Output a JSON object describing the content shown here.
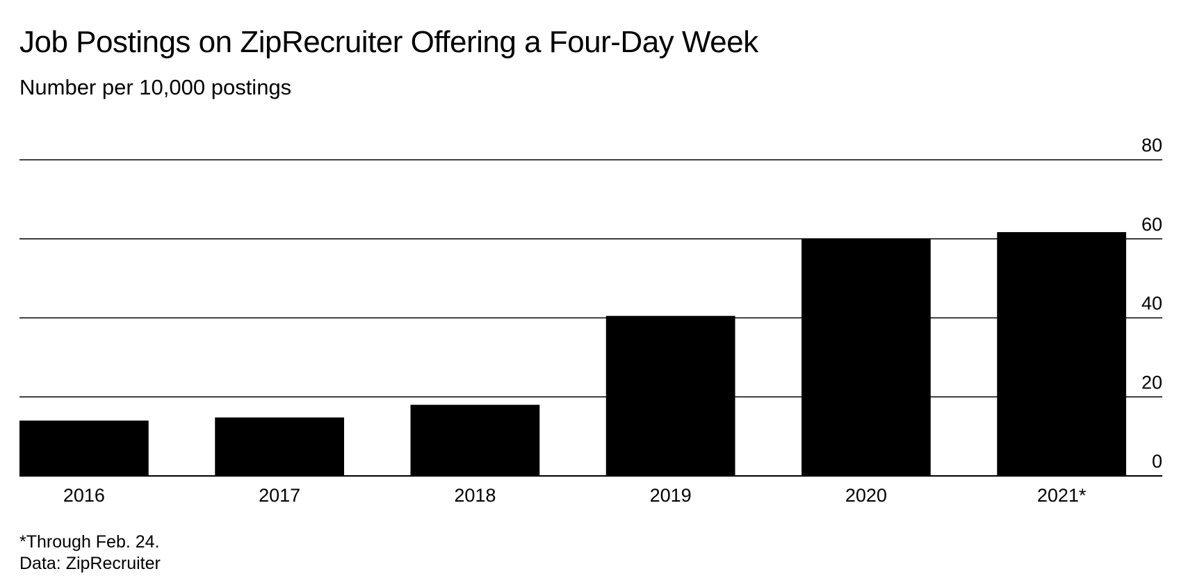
{
  "chart_data": {
    "type": "bar",
    "title": "Job Postings on ZipRecruiter Offering a Four-Day Week",
    "subtitle": "Number per 10,000 postings",
    "categories": [
      "2016",
      "2017",
      "2018",
      "2019",
      "2020",
      "2021*"
    ],
    "values": [
      14,
      14.8,
      18,
      40.5,
      60,
      61.7
    ],
    "ylim": [
      0,
      80
    ],
    "yticks": [
      0,
      20,
      40,
      60,
      80
    ],
    "grid": true,
    "y_axis_side": "right",
    "bar_color": "#000000",
    "gridline_color": "#000000"
  },
  "footnotes": {
    "note": "*Through Feb. 24.",
    "source": "Data: ZipRecruiter"
  }
}
